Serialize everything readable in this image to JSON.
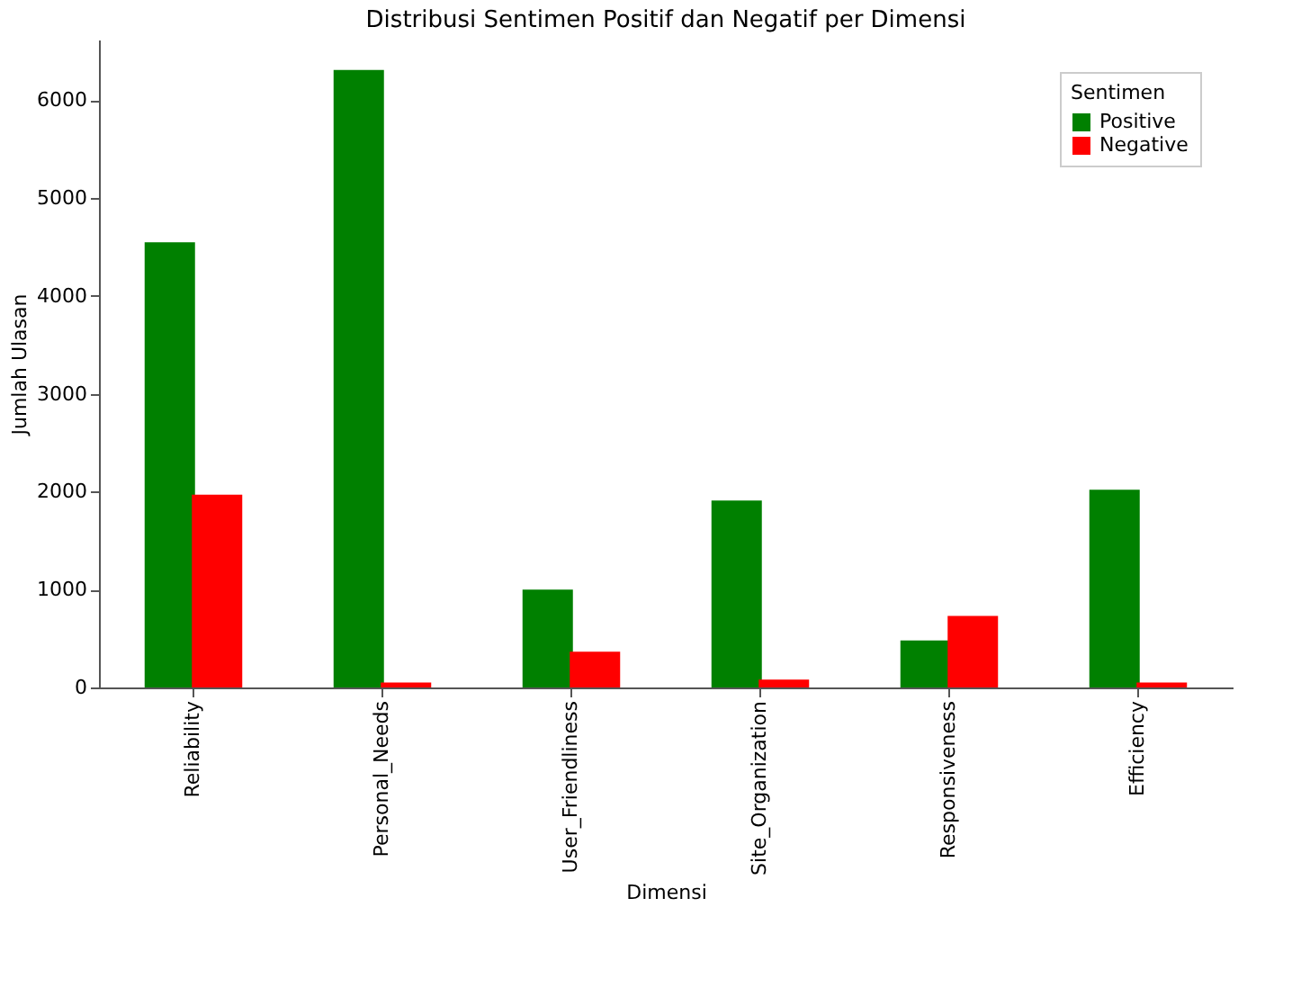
{
  "chart_data": {
    "type": "bar",
    "title": "Distribusi Sentimen Positif dan Negatif per Dimensi",
    "xlabel": "Dimensi",
    "ylabel": "Jumlah Ulasan",
    "legend_title": "Sentimen",
    "categories": [
      "Reliability",
      "Personal_Needs",
      "User_Friendliness",
      "Site_Organization",
      "Responsiveness",
      "Efficiency"
    ],
    "series": [
      {
        "name": "Positive",
        "color": "#008000",
        "values": [
          4550,
          6310,
          1000,
          1910,
          480,
          2020
        ]
      },
      {
        "name": "Negative",
        "color": "#ff0000",
        "values": [
          1970,
          50,
          365,
          80,
          730,
          50
        ]
      }
    ],
    "ylim": [
      0,
      6620
    ],
    "yticks": [
      0,
      1000,
      2000,
      3000,
      4000,
      5000,
      6000
    ],
    "grid": false,
    "legend": "top right"
  }
}
